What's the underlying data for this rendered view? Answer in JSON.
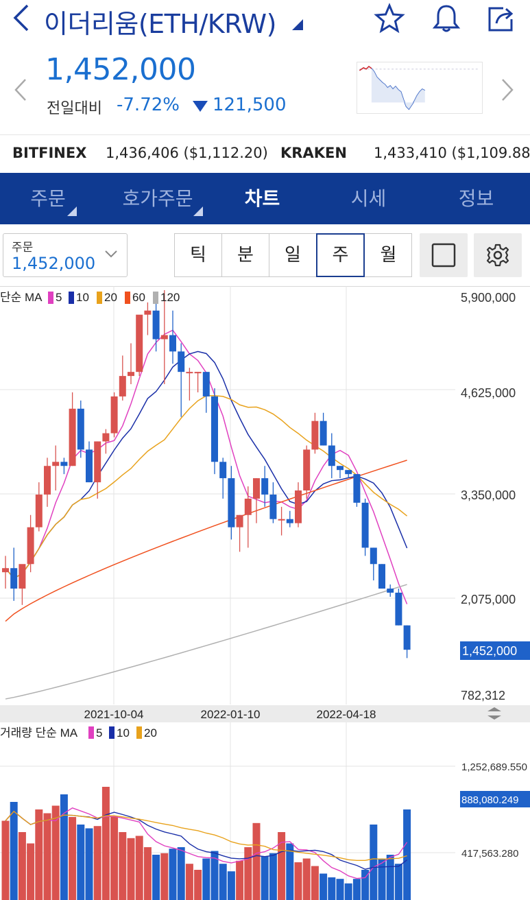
{
  "header": {
    "title": "이더리움(ETH/KRW)"
  },
  "quote": {
    "price": "1,452,000",
    "compare_label": "전일대비",
    "change_pct": "-7.72%",
    "change_val": "121,500"
  },
  "exchanges": [
    {
      "name": "BITFINEX",
      "value": "1,436,406 ($1,112.20)"
    },
    {
      "name": "KRAKEN",
      "value": "1,433,410 ($1,109.88)"
    }
  ],
  "tabs": [
    {
      "label": "주문",
      "has_menu": true
    },
    {
      "label": "호가주문",
      "has_menu": true
    },
    {
      "label": "차트",
      "active": true
    },
    {
      "label": "시세"
    },
    {
      "label": "정보"
    }
  ],
  "order_select": {
    "label": "주문",
    "value": "1,452,000"
  },
  "periods": [
    {
      "label": "틱"
    },
    {
      "label": "분"
    },
    {
      "label": "일"
    },
    {
      "label": "주",
      "selected": true
    },
    {
      "label": "월"
    }
  ],
  "icons": [
    "back-icon",
    "alert-triangle-icon",
    "star-icon",
    "bell-icon",
    "share-icon",
    "chevron-left-icon",
    "chevron-right-icon",
    "chevron-down-icon",
    "square-icon",
    "gear-icon",
    "resize-icon"
  ],
  "colors": {
    "up": "#d9534f",
    "down": "#1f62c9",
    "brand": "#0f3a91",
    "accent": "#1a6fd0"
  },
  "chart_data": [
    {
      "type": "candlestick",
      "legend": {
        "prefix": "단순 MA",
        "items": [
          {
            "label": "5",
            "color": "#e040c0"
          },
          {
            "label": "10",
            "color": "#1a2fa8"
          },
          {
            "label": "20",
            "color": "#e8a21c"
          },
          {
            "label": "60",
            "color": "#f0501e"
          },
          {
            "label": "120",
            "color": "#b0b0b0"
          }
        ]
      },
      "y_ticks": [
        "5,900,000",
        "4,625,000",
        "3,350,000",
        "2,075,000",
        "782,312"
      ],
      "last_price_label": "1,452,000",
      "x_ticks": [
        "2021-10-04",
        "2022-01-10",
        "2022-04-18"
      ],
      "ylim": [
        782312,
        5900000
      ],
      "candles": [
        [
          2400000,
          2600000,
          2200000,
          2450000
        ],
        [
          2450000,
          2700000,
          2050000,
          2200000
        ],
        [
          2200000,
          2450000,
          2000000,
          2500000
        ],
        [
          2500000,
          3100000,
          2400000,
          2950000
        ],
        [
          2950000,
          3500000,
          2900000,
          3350000
        ],
        [
          3350000,
          3800000,
          3200000,
          3700000
        ],
        [
          3700000,
          3950000,
          3400000,
          3750000
        ],
        [
          3750000,
          3800000,
          3600000,
          3700000
        ],
        [
          3700000,
          4600000,
          3700000,
          4400000
        ],
        [
          4400000,
          4500000,
          3800000,
          3900000
        ],
        [
          3900000,
          4000000,
          3500000,
          3500000
        ],
        [
          3500000,
          4000000,
          3300000,
          4000000
        ],
        [
          4000000,
          4150000,
          3850000,
          4100000
        ],
        [
          4100000,
          4600000,
          4050000,
          4550000
        ],
        [
          4550000,
          5050000,
          4500000,
          4800000
        ],
        [
          4800000,
          5200000,
          4700000,
          4850000
        ],
        [
          4850000,
          5500000,
          4800000,
          5550000
        ],
        [
          5550000,
          5700000,
          5300000,
          5600000
        ],
        [
          5600000,
          5700000,
          5100000,
          5250000
        ],
        [
          5250000,
          5850000,
          4700000,
          5300000
        ],
        [
          5300000,
          5600000,
          4950000,
          5100000
        ],
        [
          5100000,
          5200000,
          4300000,
          4850000
        ],
        [
          4850000,
          4900000,
          4500000,
          4850000
        ],
        [
          4850000,
          4850000,
          4600000,
          4850000
        ],
        [
          4850000,
          4850000,
          4350000,
          4550000
        ],
        [
          4550000,
          4650000,
          3600000,
          3750000
        ],
        [
          3750000,
          3800000,
          3300000,
          3550000
        ],
        [
          3550000,
          3700000,
          2800000,
          2950000
        ],
        [
          2950000,
          3100000,
          2650000,
          3100000
        ],
        [
          3100000,
          3450000,
          2700000,
          3300000
        ],
        [
          3300000,
          3550000,
          3000000,
          3550000
        ],
        [
          3550000,
          3700000,
          3200000,
          3350000
        ],
        [
          3350000,
          3500000,
          3000000,
          3050000
        ],
        [
          3050000,
          3200000,
          2850000,
          3050000
        ],
        [
          3050000,
          3150000,
          2950000,
          3000000
        ],
        [
          3000000,
          3500000,
          2950000,
          3400000
        ],
        [
          3400000,
          3950000,
          3300000,
          3900000
        ],
        [
          3900000,
          4350000,
          3850000,
          4250000
        ],
        [
          4250000,
          4350000,
          3950000,
          3950000
        ],
        [
          3950000,
          4100000,
          3550000,
          3700000
        ],
        [
          3700000,
          3700000,
          3550000,
          3650000
        ],
        [
          3650000,
          3650000,
          3550000,
          3600000
        ],
        [
          3600000,
          3600000,
          3200000,
          3250000
        ],
        [
          3250000,
          3300000,
          2600000,
          2700000
        ],
        [
          2700000,
          2700000,
          2300000,
          2500000
        ],
        [
          2500000,
          2500000,
          2200000,
          2200000
        ],
        [
          2200000,
          2250000,
          2100000,
          2150000
        ],
        [
          2150000,
          2200000,
          1750000,
          1750000
        ],
        [
          1750000,
          1750000,
          1350000,
          1452000
        ]
      ]
    },
    {
      "type": "bar",
      "legend": {
        "prefix": "거래량 단순 MA",
        "items": [
          {
            "label": "5",
            "color": "#e040c0"
          },
          {
            "label": "10",
            "color": "#1a2fa8"
          },
          {
            "label": "20",
            "color": "#e8a21c"
          }
        ]
      },
      "y_ticks": [
        "1,252,689.550",
        "888,080.249",
        "417,563.280"
      ],
      "last_value_label": "888,080.249",
      "ylim": [
        0,
        1600000
      ]
    }
  ]
}
